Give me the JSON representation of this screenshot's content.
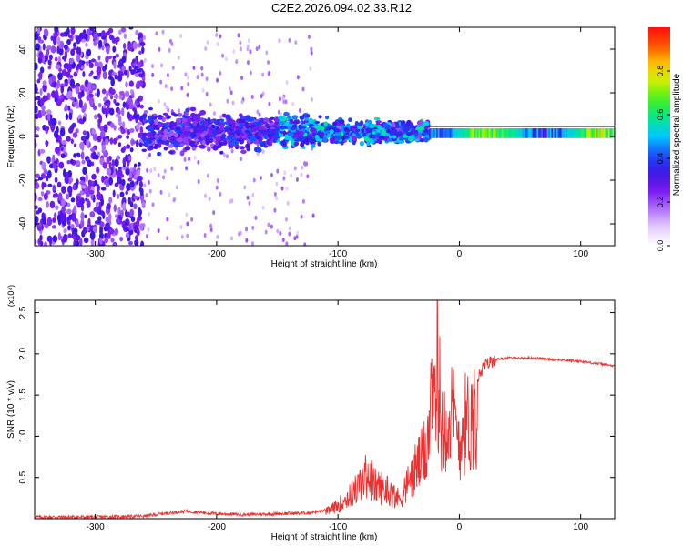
{
  "title": "C2E2.2026.094.02.33.R12",
  "colors": {
    "snr_line": "#ee3030",
    "colormap": [
      "#ffffff",
      "#e6d0ff",
      "#b070ff",
      "#7a1cf0",
      "#3a14e0",
      "#1a4cff",
      "#00c8ff",
      "#00e890",
      "#40f020",
      "#c8f000",
      "#ffc800",
      "#ff5000",
      "#ff1010"
    ]
  },
  "chart_data": [
    {
      "type": "heatmap",
      "xlabel": "Height of straight line (km)",
      "ylabel": "Frequency (Hz)",
      "xlim": [
        -350,
        128
      ],
      "ylim": [
        -50,
        50
      ],
      "xticks": [
        -300,
        -200,
        -100,
        0,
        100
      ],
      "xtick_labels": [
        "-300",
        "-200",
        "-100",
        "0",
        "100"
      ],
      "yticks": [
        -40,
        -20,
        0,
        20,
        40
      ],
      "ytick_labels": [
        "-40",
        "-20",
        "0",
        "20",
        "40"
      ],
      "colorbar": {
        "label": "Normalized spectral amplitude",
        "range": [
          0,
          1
        ],
        "ticks": [
          0.0,
          0.2,
          0.4,
          0.6,
          0.8
        ],
        "tick_labels": [
          "0.0",
          "0.2",
          "0.4",
          "0.6",
          "0.8"
        ]
      },
      "features": {
        "noise_band_x": [
          -350,
          -260
        ],
        "noisy_band_x": [
          -260,
          -25
        ],
        "steady_tone_x": [
          -25,
          128
        ],
        "tone_frequency_hz": 1.5
      }
    },
    {
      "type": "line",
      "xlabel": "Height of straight line (km)",
      "ylabel": "SNR (10 * v/v)",
      "y_multiplier": "(x10⁴)",
      "xlim": [
        -350,
        128
      ],
      "ylim": [
        0,
        2.65
      ],
      "xticks": [
        -300,
        -200,
        -100,
        0,
        100
      ],
      "xtick_labels": [
        "-300",
        "-200",
        "-100",
        "0",
        "100"
      ],
      "yticks": [
        0.5,
        1.0,
        1.5,
        2.0,
        2.5
      ],
      "ytick_labels": [
        "0.5",
        "1.0",
        "1.5",
        "2.0",
        "2.5"
      ],
      "series": [
        {
          "x": [
            -350,
            -300,
            -260,
            -240,
            -225,
            -200,
            -175,
            -150,
            -125,
            -110,
            -100,
            -90,
            -80,
            -75,
            -70,
            -60,
            -50,
            -40,
            -35,
            -30,
            -25,
            -20,
            -18,
            -15,
            -10,
            -5,
            0,
            5,
            10,
            15,
            20,
            25,
            30,
            40,
            50,
            60,
            70,
            80,
            90,
            100,
            110,
            120,
            128
          ],
          "y": [
            0.02,
            0.02,
            0.03,
            0.07,
            0.09,
            0.06,
            0.05,
            0.06,
            0.07,
            0.1,
            0.2,
            0.35,
            0.55,
            0.7,
            0.5,
            0.45,
            0.3,
            0.6,
            0.8,
            0.9,
            1.4,
            1.8,
            2.6,
            1.4,
            1.6,
            1.5,
            1.2,
            1.45,
            1.5,
            1.7,
            1.85,
            1.9,
            1.93,
            1.95,
            1.95,
            1.95,
            1.94,
            1.93,
            1.92,
            1.91,
            1.89,
            1.87,
            1.85
          ]
        }
      ]
    }
  ]
}
